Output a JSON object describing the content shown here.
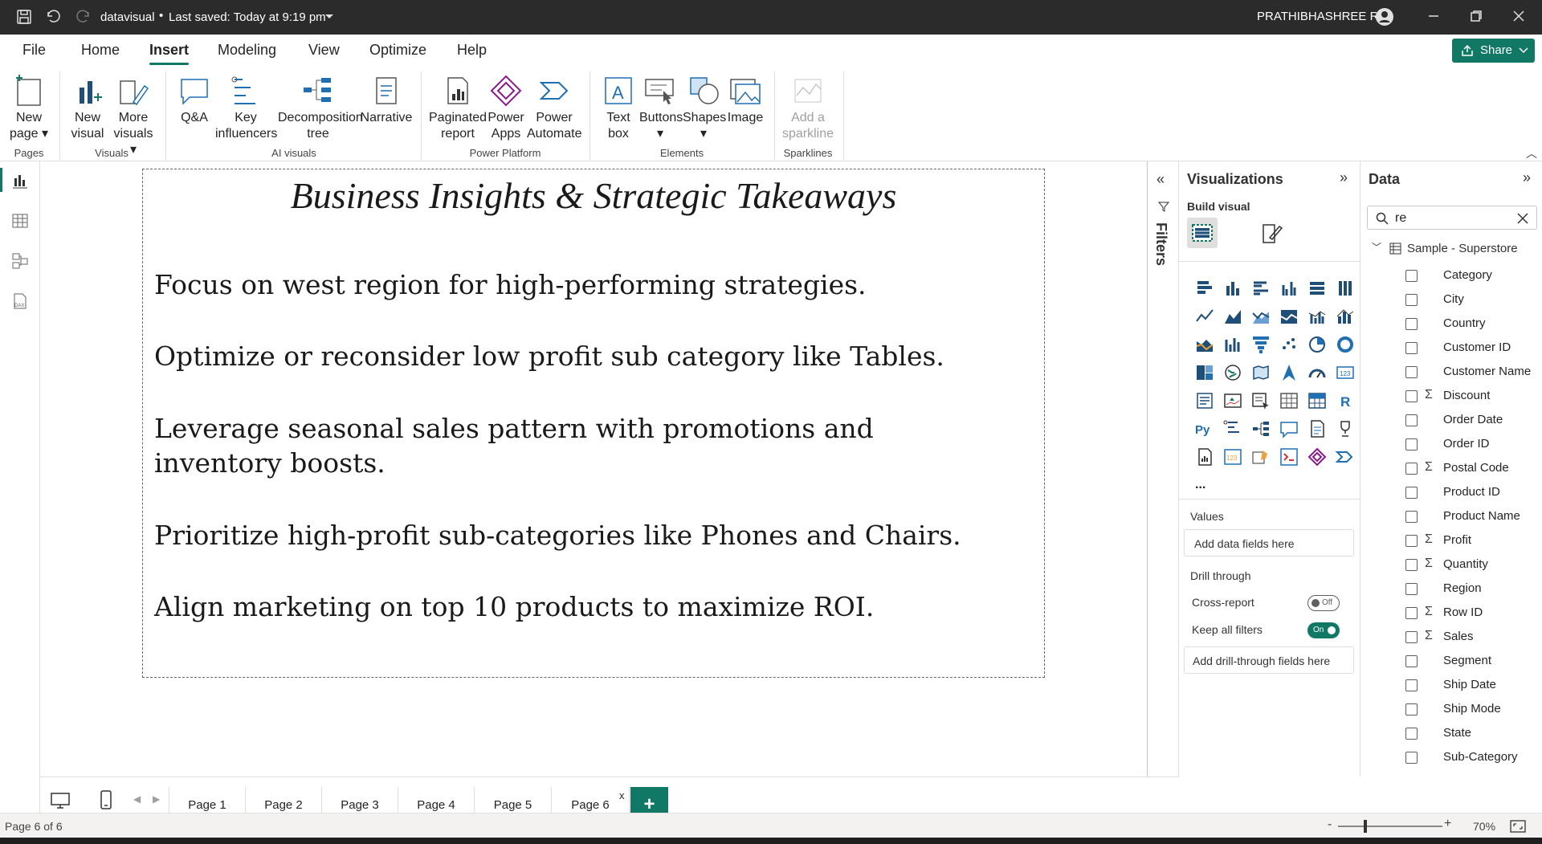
{
  "titlebar": {
    "file_name": "datavisual",
    "saved": "Last saved: Today at 9:19 pm",
    "user": "PRATHIBHASHREE R"
  },
  "menu": {
    "tabs": [
      "File",
      "Home",
      "Insert",
      "Modeling",
      "View",
      "Optimize",
      "Help"
    ],
    "active": "Insert",
    "share": "Share"
  },
  "ribbon": {
    "new_page": "New page",
    "new_visual": "New visual",
    "more_visuals": "More visuals",
    "qa": "Q&A",
    "key_influencers": "Key influencers",
    "decomposition": "Decomposition tree",
    "narrative": "Narrative",
    "paginated": "Paginated report",
    "power_apps": "Power Apps",
    "power_automate": "Power Automate",
    "text_box": "Text box",
    "buttons": "Buttons",
    "shapes": "Shapes",
    "image": "Image",
    "sparkline": "Add a sparkline",
    "groups": {
      "pages": "Pages",
      "visuals": "Visuals",
      "ai": "AI visuals",
      "platform": "Power Platform",
      "elements": "Elements",
      "sparklines": "Sparklines"
    }
  },
  "report": {
    "title": "Business Insights & Strategic Takeaways",
    "points": [
      "Focus on west region for high-performing strategies.",
      "Optimize or reconsider low profit sub category like Tables.",
      "Leverage seasonal sales pattern with promotions and inventory boosts.",
      "Prioritize high-profit sub-categories like Phones and Chairs.",
      "Align marketing on top 10 products to maximize ROI."
    ]
  },
  "filters": {
    "label": "Filters"
  },
  "visualizations": {
    "title": "Visualizations",
    "build_visual": "Build visual",
    "values_label": "Values",
    "values_placeholder": "Add data fields here",
    "drill_through": "Drill through",
    "cross_report": "Cross-report",
    "cross_report_state": "Off",
    "keep_filters": "Keep all filters",
    "keep_filters_state": "On",
    "drill_placeholder": "Add drill-through fields here",
    "more": "..."
  },
  "data": {
    "title": "Data",
    "search_value": "re",
    "table_name": "Sample - Superstore",
    "fields": [
      {
        "name": "Category",
        "sigma": false
      },
      {
        "name": "City",
        "sigma": false
      },
      {
        "name": "Country",
        "sigma": false
      },
      {
        "name": "Customer ID",
        "sigma": false
      },
      {
        "name": "Customer Name",
        "sigma": false
      },
      {
        "name": "Discount",
        "sigma": true
      },
      {
        "name": "Order Date",
        "sigma": false
      },
      {
        "name": "Order ID",
        "sigma": false
      },
      {
        "name": "Postal Code",
        "sigma": true
      },
      {
        "name": "Product ID",
        "sigma": false
      },
      {
        "name": "Product Name",
        "sigma": false
      },
      {
        "name": "Profit",
        "sigma": true
      },
      {
        "name": "Quantity",
        "sigma": true
      },
      {
        "name": "Region",
        "sigma": false
      },
      {
        "name": "Row ID",
        "sigma": true
      },
      {
        "name": "Sales",
        "sigma": true
      },
      {
        "name": "Segment",
        "sigma": false
      },
      {
        "name": "Ship Date",
        "sigma": false
      },
      {
        "name": "Ship Mode",
        "sigma": false
      },
      {
        "name": "State",
        "sigma": false
      },
      {
        "name": "Sub-Category",
        "sigma": false
      }
    ]
  },
  "pages": {
    "tabs": [
      "Page 1",
      "Page 2",
      "Page 3",
      "Page 4",
      "Page 5",
      "Page 6"
    ],
    "active": "Page 6",
    "add": "+",
    "close": "x"
  },
  "status": {
    "page_info": "Page 6 of 6",
    "zoom": "70%",
    "zoom_level": 0.7
  },
  "colors": {
    "accent": "#117865",
    "titlebar": "#2b2b2b"
  },
  "sigma_symbol": "Σ"
}
